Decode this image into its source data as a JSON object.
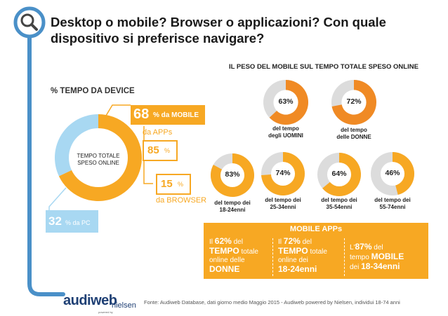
{
  "title": "Desktop o mobile? Browser o applicazioni? Con quale dispositivo si preferisce navigare?",
  "left": {
    "heading": "% TEMPO DA DEVICE",
    "donut_center": "TEMPO TOTALE SPESO ONLINE",
    "mobile_pct": "68",
    "mobile_label": "% da MOBILE",
    "apps_label": "da APPs",
    "apps_pct": "85",
    "browser_pct": "15",
    "browser_label": "da BROWSER",
    "pc_pct": "32",
    "pc_label": "% da PC",
    "pct_sign": "%"
  },
  "right": {
    "heading": "IL PESO DEL MOBILE SUL TEMPO TOTALE SPESO ONLINE",
    "pies": [
      {
        "pct": "63%",
        "line1": "del tempo",
        "line2": "degli UOMINI"
      },
      {
        "pct": "72%",
        "line1": "del tempo",
        "line2": "delle DONNE"
      },
      {
        "pct": "83%",
        "line1": "del tempo dei",
        "line2": "18-24enni"
      },
      {
        "pct": "74%",
        "line1": "del tempo dei",
        "line2": "25-34enni"
      },
      {
        "pct": "64%",
        "line1": "del tempo dei",
        "line2": "35-54enni"
      },
      {
        "pct": "46%",
        "line1": "del tempo dei",
        "line2": "55-74enni"
      }
    ]
  },
  "apps": {
    "heading": "MOBILE APPs",
    "col1": {
      "a": "Il ",
      "b": "62%",
      "c": " del",
      "d": "TEMPO",
      "e": " totale",
      "f": "online delle",
      "g": "DONNE"
    },
    "col2": {
      "a": "Il ",
      "b": "72%",
      "c": " del",
      "d": "TEMPO",
      "e": " totale",
      "f": "online dei",
      "g": "18-24enni"
    },
    "col3": {
      "a": "L'",
      "b": "87%",
      "c": " del",
      "d": "tempo ",
      "e": "MOBILE",
      "f": "dei ",
      "g": "18-34enni"
    }
  },
  "logo": {
    "main": "audiweb",
    "sub": "nielsen",
    "powered": "powered by"
  },
  "footer": "Fonte: Audiweb Database, dati giorno medio Maggio 2015 - Audiweb powered by Nielsen, individui 18-74 anni",
  "colors": {
    "orange": "#f7a823",
    "dark_orange": "#f08a24",
    "light_blue": "#a8d8f2",
    "grey": "#dcdcdc",
    "timeline_blue": "#4a90c8"
  },
  "chart_data": [
    {
      "type": "pie",
      "title": "% TEMPO DA DEVICE",
      "categories": [
        "MOBILE",
        "PC"
      ],
      "values": [
        68,
        32
      ]
    },
    {
      "type": "pie",
      "title": "IL PESO DEL MOBILE SUL TEMPO TOTALE SPESO ONLINE",
      "categories": [
        "UOMINI",
        "DONNE",
        "18-24enni",
        "25-34enni",
        "35-54enni",
        "55-74enni"
      ],
      "values": [
        63,
        72,
        83,
        74,
        64,
        46
      ]
    }
  ]
}
